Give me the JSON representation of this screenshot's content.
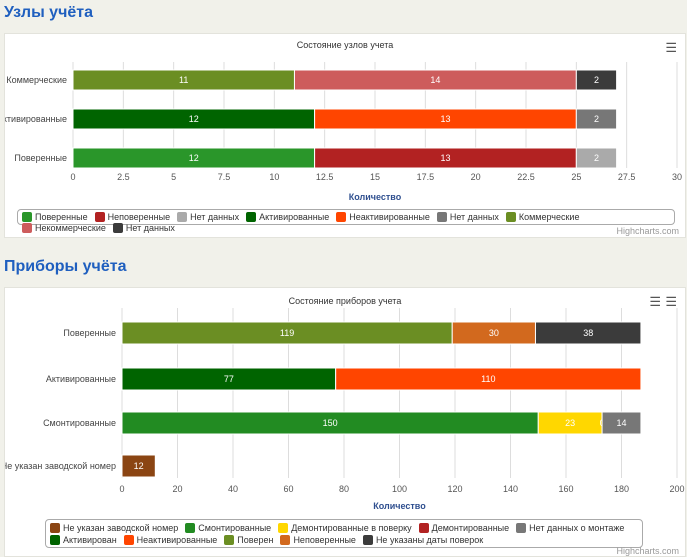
{
  "section1_title": "Узлы учёта",
  "section2_title": "Приборы учёта",
  "credit": "Highcharts.com",
  "chart_data": [
    {
      "type": "bar",
      "stacked": true,
      "title": "Состояние узлов учета",
      "xlabel": "Количество",
      "xlim": [
        0,
        30
      ],
      "ticks": [
        "0",
        "2.5",
        "5",
        "7.5",
        "10",
        "12.5",
        "15",
        "17.5",
        "20",
        "22.5",
        "25",
        "27.5",
        "30"
      ],
      "categories": [
        "Коммерческие",
        "Активированные",
        "Поверенные"
      ],
      "series": [
        {
          "name": "Поверенные",
          "color": "#2a962a",
          "category": 2,
          "value": 12
        },
        {
          "name": "Неповеренные",
          "color": "#b22222",
          "category": 2,
          "value": 13
        },
        {
          "name": "Нет данных",
          "color": "#aaaaaa",
          "category": 2,
          "value": 2
        },
        {
          "name": "Активированные",
          "color": "#006400",
          "category": 1,
          "value": 12
        },
        {
          "name": "Неактивированные",
          "color": "#ff4500",
          "category": 1,
          "value": 13
        },
        {
          "name": "Нет данных",
          "color": "#777777",
          "category": 1,
          "value": 2
        },
        {
          "name": "Коммерческие",
          "color": "#6b8e23",
          "category": 0,
          "value": 11
        },
        {
          "name": "Некоммерческие",
          "color": "#cd5c5c",
          "category": 0,
          "value": 14
        },
        {
          "name": "Нет данных",
          "color": "#3b3b3b",
          "category": 0,
          "value": 2
        }
      ]
    },
    {
      "type": "bar",
      "stacked": true,
      "title": "Состояние приборов учета",
      "xlabel": "Количество",
      "xlim": [
        0,
        200
      ],
      "ticks": [
        "0",
        "20",
        "40",
        "60",
        "80",
        "100",
        "120",
        "140",
        "160",
        "180",
        "200"
      ],
      "categories": [
        "Поверенные",
        "Активированные",
        "Смонтированные",
        "Не указан заводской номер"
      ],
      "series": [
        {
          "name": "Не указан заводской номер",
          "color": "#8b4513",
          "category": 3,
          "value": 12
        },
        {
          "name": "Смонтированные",
          "color": "#228b22",
          "category": 2,
          "value": 150
        },
        {
          "name": "Демонтированные в поверку",
          "color": "#ffd700",
          "category": 2,
          "value": 23
        },
        {
          "name": "Демонтированные",
          "color": "#b22222",
          "category": 2,
          "value": 0
        },
        {
          "name": "Нет данных о монтаже",
          "color": "#777777",
          "category": 2,
          "value": 14
        },
        {
          "name": "Активирован",
          "color": "#006400",
          "category": 1,
          "value": 77
        },
        {
          "name": "Неактивированные",
          "color": "#ff4500",
          "category": 1,
          "value": 110
        },
        {
          "name": "Поверен",
          "color": "#6b8e23",
          "category": 0,
          "value": 119
        },
        {
          "name": "Неповеренные",
          "color": "#d2691e",
          "category": 0,
          "value": 30
        },
        {
          "name": "Не указаны даты поверок",
          "color": "#3b3b3b",
          "category": 0,
          "value": 38
        }
      ]
    }
  ]
}
